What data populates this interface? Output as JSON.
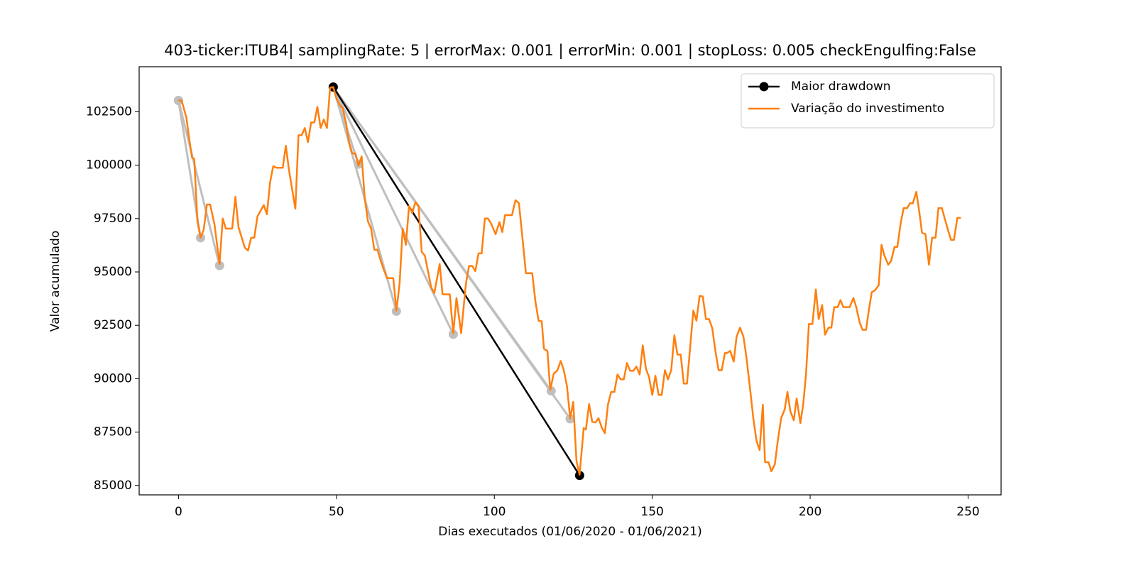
{
  "chart_data": {
    "type": "line",
    "title": "403-ticker:ITUB4| samplingRate: 5 | errorMax: 0.001 | errorMin: 0.001 | stopLoss: 0.005 checkEngulfing:False",
    "x_label": "Dias executados (01/06/2020 - 01/06/2021)",
    "y_label": "Valor acumulado",
    "xlim": [
      -12.45,
      260.45
    ],
    "ylim": [
      84560,
      104610
    ],
    "xticks": [
      0,
      50,
      100,
      150,
      200,
      250
    ],
    "yticks": [
      85000,
      87500,
      90000,
      92500,
      95000,
      97500,
      100000,
      102500
    ],
    "legend": "upper right",
    "drawdown_color": "#bfbfbf",
    "drawdowns": [
      {
        "x": [
          0,
          7
        ],
        "values": [
          103030,
          96600
        ]
      },
      {
        "x": [
          0,
          13
        ],
        "values": [
          103030,
          95300
        ]
      },
      {
        "x": [
          49,
          57
        ],
        "values": [
          103660,
          100050
        ]
      },
      {
        "x": [
          49,
          69
        ],
        "values": [
          103660,
          93160
        ]
      },
      {
        "x": [
          49,
          87
        ],
        "values": [
          103660,
          92080
        ]
      },
      {
        "x": [
          49,
          118
        ],
        "values": [
          103660,
          89430
        ]
      },
      {
        "x": [
          49,
          124
        ],
        "values": [
          103660,
          88120
        ]
      }
    ],
    "series": [
      {
        "name": "Maior drawdown",
        "color": "#000000",
        "markers": true,
        "x": [
          49,
          127
        ],
        "values": [
          103660,
          85470
        ]
      },
      {
        "name": "Variação do investimento",
        "color": "#ff7f0e",
        "markers": false,
        "x": [
          0,
          1,
          2.5,
          3.4,
          4.3,
          5,
          6,
          7,
          8,
          9,
          10,
          11.4,
          13,
          14,
          15,
          17,
          18,
          19,
          21,
          22,
          23,
          24,
          25,
          27,
          28,
          29,
          30,
          31,
          33,
          34,
          35,
          37,
          38,
          39,
          40,
          41,
          42,
          43,
          44,
          45,
          46,
          47,
          48,
          49,
          50,
          51,
          52,
          53,
          54,
          55,
          56,
          57,
          58,
          59,
          60,
          61,
          62,
          63,
          64,
          65,
          66,
          68,
          69,
          70,
          71,
          72,
          73,
          74,
          75,
          76,
          77,
          78,
          80,
          81,
          82.7,
          83.6,
          85.9,
          87,
          88,
          89.5,
          91,
          92,
          93,
          94,
          95,
          96,
          97,
          98,
          99,
          100.4,
          101.6,
          102.5,
          103.4,
          105.6,
          106.7,
          107.8,
          109,
          110,
          112,
          113,
          114,
          115,
          115.7,
          116.8,
          117.7,
          118.8,
          120,
          121,
          122,
          123,
          124,
          125,
          126,
          127,
          128.3,
          129,
          130,
          131,
          132,
          133,
          134,
          135,
          136,
          137,
          138,
          139,
          140,
          141,
          142,
          143,
          144,
          145,
          146,
          147,
          148,
          149,
          150,
          151,
          152,
          153,
          154,
          155,
          156,
          157,
          158,
          159,
          160,
          161,
          162,
          163,
          164,
          165,
          166,
          167,
          168,
          169,
          170,
          171,
          172,
          173,
          173.6,
          174.7,
          175.8,
          176.7,
          177.8,
          178.9,
          179.8,
          181,
          182,
          183,
          184,
          185,
          185.7,
          186.8,
          187.7,
          188.8,
          189.7,
          190.8,
          191.9,
          192.8,
          193.7,
          194.8,
          195.7,
          196.9,
          197.8,
          198.7,
          199.6,
          200.7,
          201.8,
          202.7,
          203.8,
          204.7,
          205.8,
          206.7,
          207.6,
          208.7,
          209.6,
          210.5,
          212.5,
          213.7,
          214.6,
          215.7,
          216.6,
          217.7,
          218.6,
          219.5,
          220.6,
          221.7,
          222.6,
          223.5,
          224.7,
          225.6,
          226.7,
          227.6,
          228.7,
          229.6,
          230.7,
          231.6,
          232.5,
          233.6,
          234.5,
          235.4,
          236.5,
          237.6,
          238.6,
          239.7,
          240.6,
          241.7,
          242.6,
          243.7,
          244.6,
          245.5,
          246.6,
          247.7
        ],
        "values": [
          103030,
          103030,
          102230,
          101230,
          100350,
          100280,
          97360,
          96600,
          97000,
          98160,
          98160,
          97230,
          95370,
          97500,
          97030,
          97030,
          98520,
          97100,
          96140,
          96000,
          96600,
          96600,
          97600,
          98130,
          97700,
          99190,
          99950,
          99880,
          99880,
          100910,
          99750,
          97960,
          101400,
          101400,
          101740,
          101080,
          102000,
          102000,
          102730,
          101740,
          102140,
          101740,
          103630,
          103660,
          103130,
          102830,
          102670,
          102000,
          101080,
          100550,
          100550,
          99980,
          100410,
          98420,
          97360,
          97030,
          96040,
          96040,
          95540,
          95110,
          94710,
          94710,
          93190,
          94450,
          97030,
          96270,
          98090,
          97760,
          98260,
          98090,
          95940,
          95770,
          94280,
          94010,
          95370,
          93950,
          93950,
          92130,
          93780,
          92130,
          94450,
          95280,
          95280,
          95040,
          95870,
          95870,
          97500,
          97500,
          97260,
          96770,
          97330,
          96870,
          97660,
          97660,
          98360,
          98220,
          96440,
          94940,
          94940,
          93620,
          92720,
          92690,
          91400,
          91300,
          89470,
          90240,
          90400,
          90830,
          90400,
          89640,
          88150,
          88910,
          86160,
          85500,
          87690,
          87620,
          88810,
          87980,
          87950,
          88150,
          87720,
          87450,
          88810,
          89380,
          89380,
          90200,
          89970,
          89970,
          90730,
          90370,
          90370,
          90570,
          90200,
          91560,
          90470,
          90070,
          89240,
          90140,
          89240,
          89240,
          90400,
          89970,
          90400,
          92030,
          91130,
          91130,
          89770,
          89770,
          91460,
          93190,
          92720,
          93880,
          93850,
          92790,
          92790,
          92360,
          91300,
          90400,
          90400,
          91200,
          91200,
          91300,
          90800,
          91960,
          92390,
          91960,
          91030,
          89470,
          88150,
          87090,
          86660,
          88780,
          86090,
          86090,
          85660,
          85990,
          87050,
          88150,
          88550,
          89380,
          88480,
          88050,
          89080,
          87920,
          88810,
          90240,
          92560,
          92560,
          94180,
          92790,
          93450,
          92060,
          92390,
          92390,
          93350,
          93350,
          93680,
          93350,
          93350,
          93780,
          93350,
          92620,
          92290,
          92290,
          93220,
          94050,
          94150,
          94380,
          96270,
          95770,
          95340,
          95510,
          96170,
          96170,
          97330,
          97990,
          97990,
          98220,
          98220,
          98750,
          97860,
          96830,
          96770,
          95340,
          96600,
          96600,
          97990,
          97990,
          97500,
          96930,
          96500,
          96500,
          97530,
          97530
        ]
      }
    ]
  }
}
